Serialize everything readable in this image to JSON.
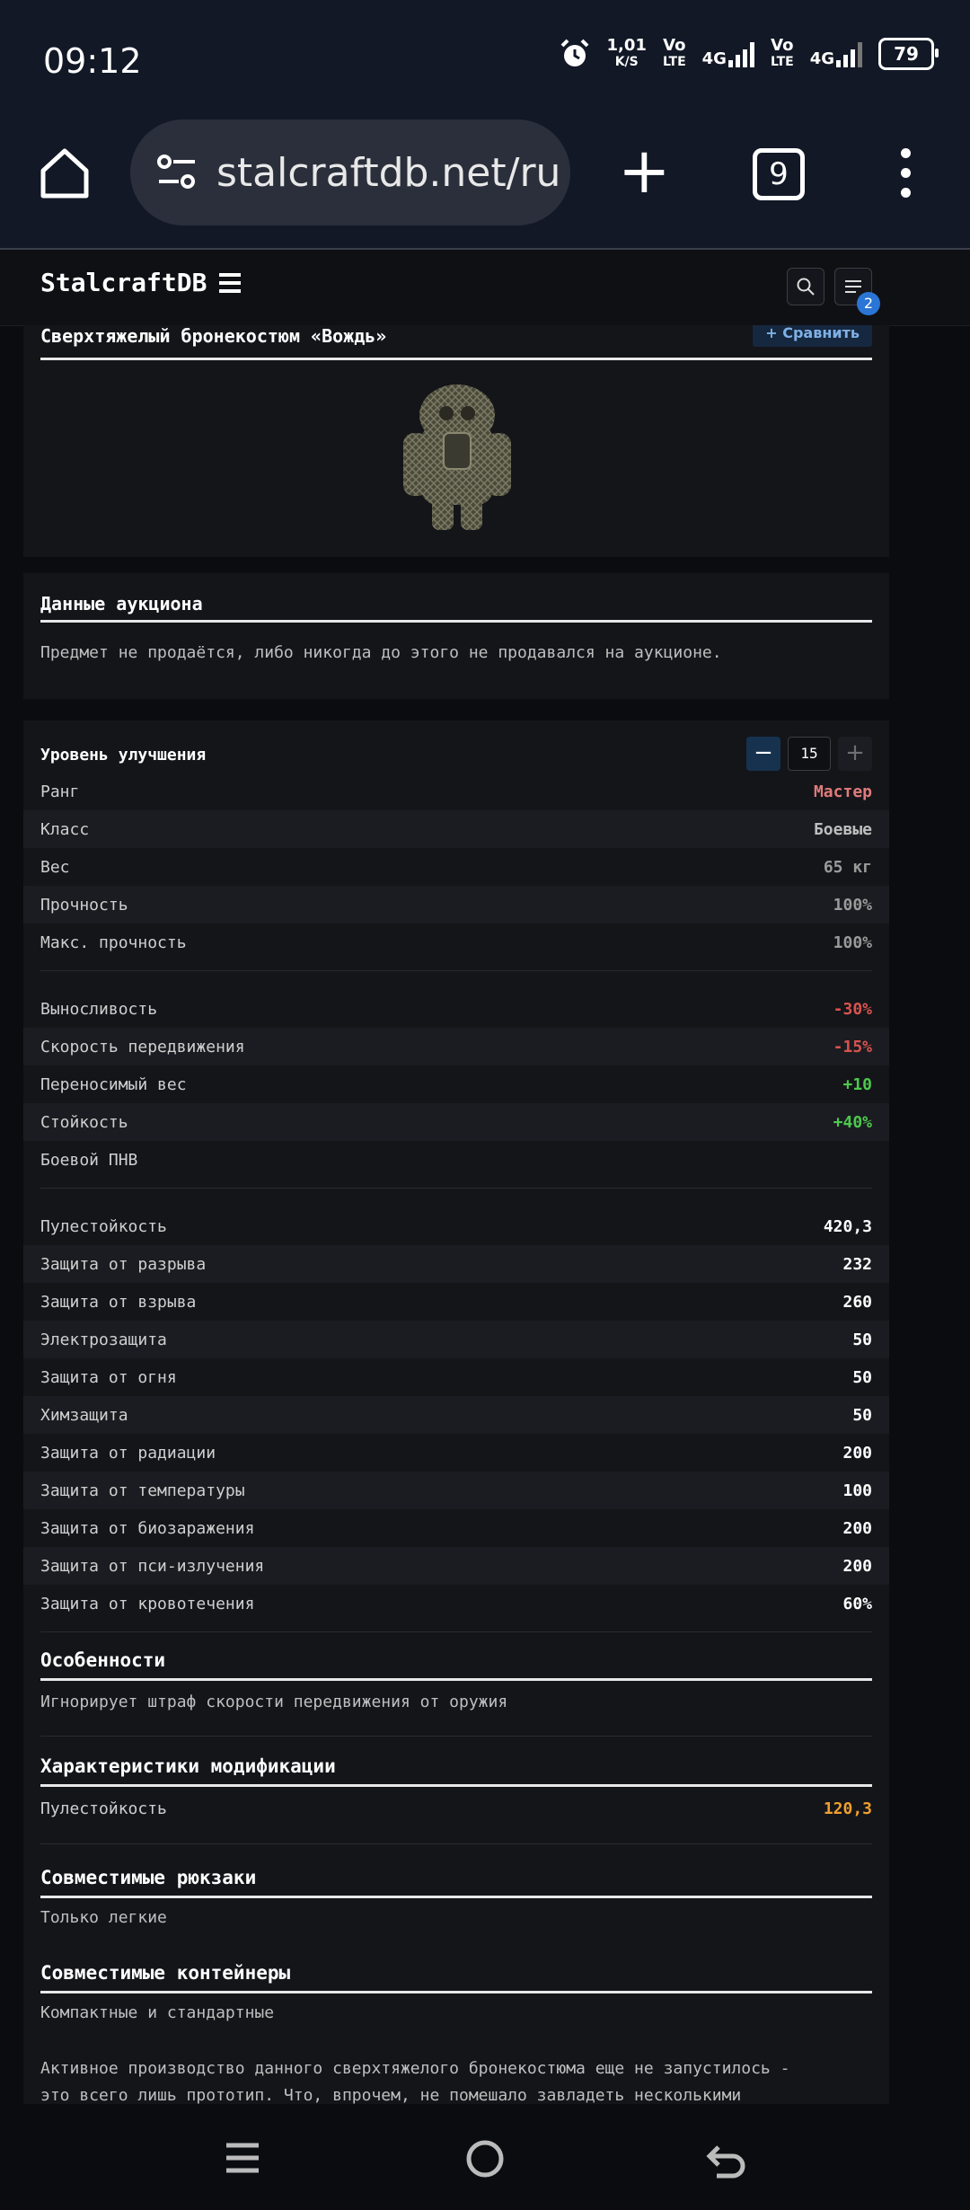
{
  "status": {
    "time": "09:12",
    "speed_value": "1,01",
    "speed_unit": "K/S",
    "sim1_vo": "Vo",
    "sim1_lte": "LTE",
    "sim1_net": "4G",
    "sim2_vo": "Vo",
    "sim2_lte": "LTE",
    "sim2_net": "4G",
    "battery": "79"
  },
  "browser": {
    "url": "stalcraftdb.net/ru",
    "tab_count": "9"
  },
  "header": {
    "brand": "StalcraftDB",
    "menu_badge": "2"
  },
  "item": {
    "title": "Сверхтяжелый бронекостюм «Вождь»",
    "compare_label": "+ Сравнить"
  },
  "auction": {
    "title": "Данные аукциона",
    "text": "Предмет не продаётся, либо никогда до этого не продавался на аукционе."
  },
  "upgrade": {
    "label": "Уровень улучшения",
    "minus": "−",
    "value": "15",
    "plus": "+"
  },
  "basic": [
    {
      "label": "Ранг",
      "value": "Мастер",
      "color": "#e07b7b"
    },
    {
      "label": "Класс",
      "value": "Боевые",
      "color": "#bdbdbd"
    },
    {
      "label": "Вес",
      "value": "65 кг",
      "color": "#9a9a9a"
    },
    {
      "label": "Прочность",
      "value": "100%",
      "color": "#9a9a9a"
    },
    {
      "label": "Макс. прочность",
      "value": "100%",
      "color": "#9a9a9a"
    }
  ],
  "effects": [
    {
      "label": "Выносливость",
      "value": "-30%",
      "color": "#d9534f"
    },
    {
      "label": "Скорость передвижения",
      "value": "-15%",
      "color": "#d9534f"
    },
    {
      "label": "Переносимый вес",
      "value": "+10",
      "color": "#4cc94c"
    },
    {
      "label": "Стойкость",
      "value": "+40%",
      "color": "#4cc94c"
    },
    {
      "label": "Боевой ПНВ",
      "value": "",
      "color": "#ffffff"
    }
  ],
  "protection": [
    {
      "label": "Пулестойкость",
      "value": "420,3"
    },
    {
      "label": "Защита от разрыва",
      "value": "232"
    },
    {
      "label": "Защита от взрыва",
      "value": "260"
    },
    {
      "label": "Электрозащита",
      "value": "50"
    },
    {
      "label": "Защита от огня",
      "value": "50"
    },
    {
      "label": "Химзащита",
      "value": "50"
    },
    {
      "label": "Защита от радиации",
      "value": "200"
    },
    {
      "label": "Защита от температуры",
      "value": "100"
    },
    {
      "label": "Защита от биозаражения",
      "value": "200"
    },
    {
      "label": "Защита от пси-излучения",
      "value": "200"
    },
    {
      "label": "Защита от кровотечения",
      "value": "60%"
    }
  ],
  "features": {
    "title": "Особенности",
    "text": "Игнорирует штраф скорости передвижения от оружия"
  },
  "mod": {
    "title": "Характеристики модификации",
    "label": "Пулестойкость",
    "value": "120,3",
    "value_color": "#f0a030"
  },
  "backpacks": {
    "title": "Совместимые рюкзаки",
    "text": "Только легкие"
  },
  "containers": {
    "title": "Совместимые контейнеры",
    "text": "Компактные и стандартные"
  },
  "description": {
    "line1": "Активное производство данного сверхтяжелого бронекостюма еще не запустилось -",
    "line2": "это всего лишь прототип. Что, впрочем, не помешало завладеть несколькими"
  }
}
